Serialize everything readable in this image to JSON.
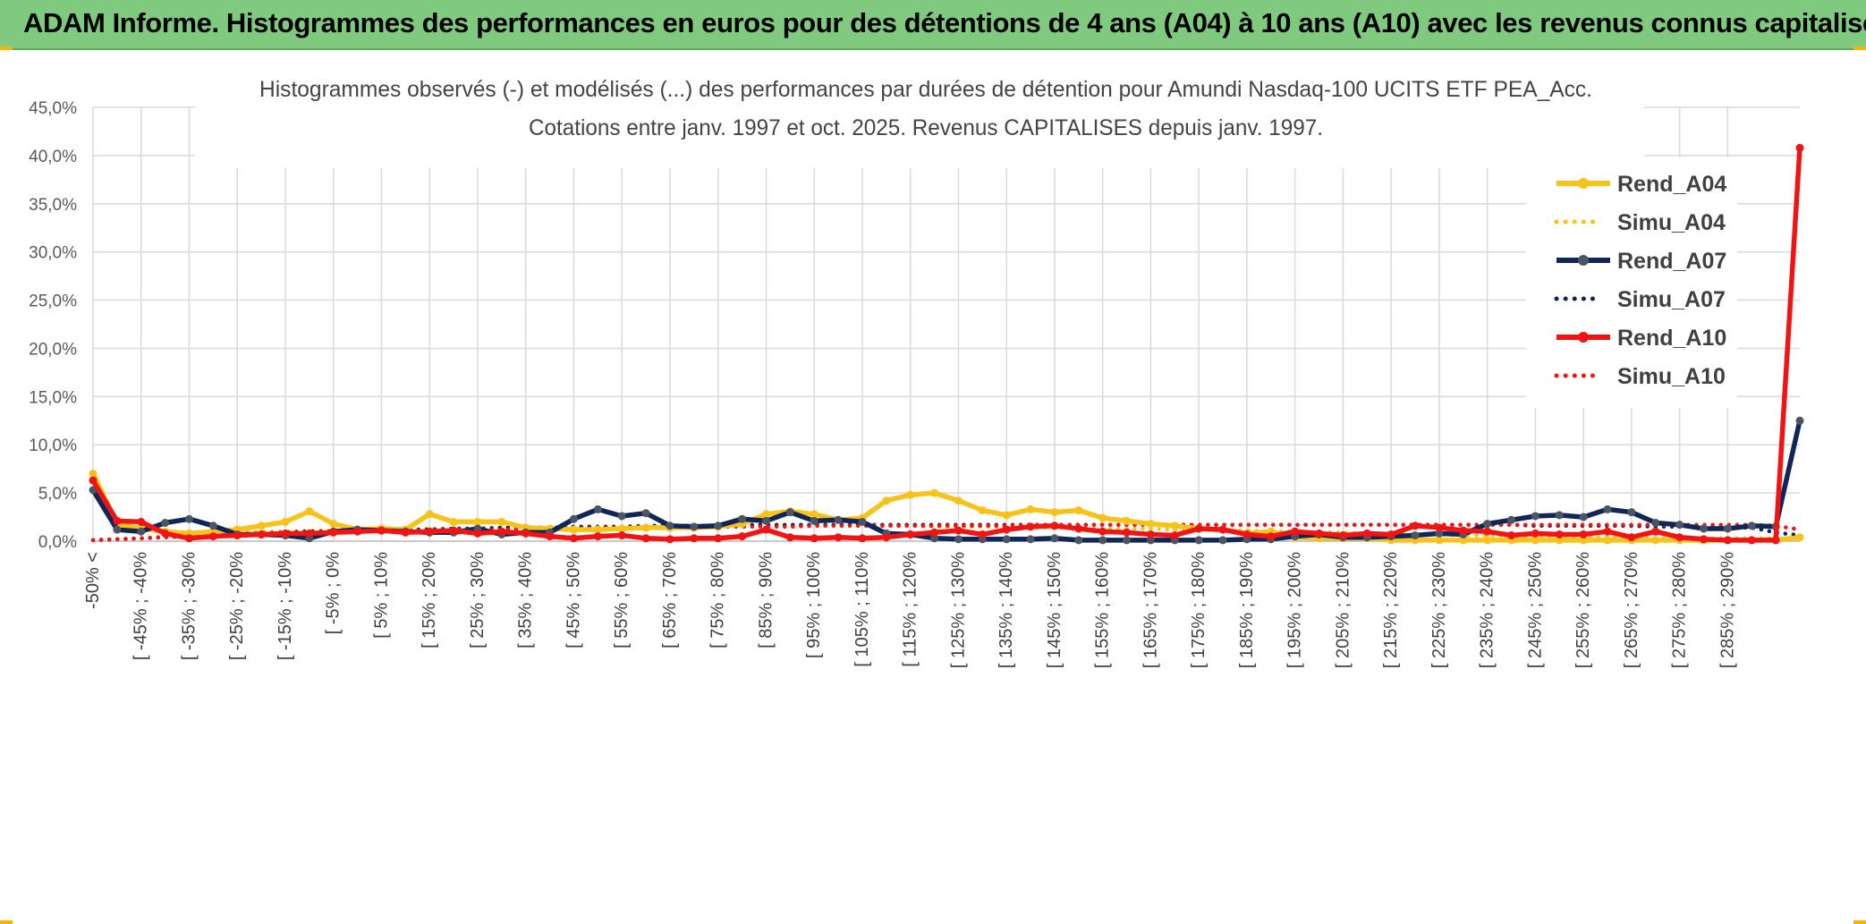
{
  "banner": {
    "title": "ADAM Informe. Histogrammes des performances en euros pour des détentions de 4 ans (A04) à 10 ans (A10) avec les revenus connus capitalisés"
  },
  "colors": {
    "banner_bg": "#7fca7e",
    "A04": "#f7c21a",
    "A07": "#0f2657",
    "A07_marker": "#4b5563",
    "A10": "#f01414"
  },
  "chart_data": {
    "type": "line",
    "title": "Histogrammes observés (-) et modélisés (...) des performances par durées de détention pour Amundi Nasdaq-100 UCITS ETF PEA_Acc.",
    "subtitle": "Cotations entre janv. 1997 et oct. 2025. Revenus CAPITALISES depuis janv. 1997.",
    "xlabel": "",
    "ylabel": "",
    "ylim": [
      0,
      45
    ],
    "yticks": [
      "0,0%",
      "5,0%",
      "10,0%",
      "15,0%",
      "20,0%",
      "25,0%",
      "30,0%",
      "35,0%",
      "40,0%",
      "45,0%"
    ],
    "grid": true,
    "legend_position": "top-right",
    "x_labels": [
      "-50% <",
      "[ -45% ; -40%",
      "[ -35% ; -30%",
      "[ -25% ; -20%",
      "[ -15% ; -10%",
      "[ -5% ; 0%",
      "[ 5% ; 10%",
      "[ 15% ; 20%",
      "[ 25% ; 30%",
      "[ 35% ; 40%",
      "[ 45% ; 50%",
      "[ 55% ; 60%",
      "[ 65% ; 70%",
      "[ 75% ; 80%",
      "[ 85% ; 90%",
      "[ 95% ; 100%",
      "[ 105% ; 110%",
      "[ 115% ; 120%",
      "[ 125% ; 130%",
      "[ 135% ; 140%",
      "[ 145% ; 150%",
      "[ 155% ; 160%",
      "[ 165% ; 170%",
      "[ 175% ; 180%",
      "[ 185% ; 190%",
      "[ 195% ; 200%",
      "[ 205% ; 210%",
      "[ 215% ; 220%",
      "[ 225% ; 230%",
      "[ 235% ; 240%",
      "[ 245% ; 250%",
      "[ 255% ; 260%",
      "[ 265% ; 270%",
      "[ 275% ; 280%",
      "[ 285% ; 290%"
    ],
    "num_points": 72,
    "series": [
      {
        "name": "Rend_A04",
        "style": "solid",
        "color": "#f7c21a",
        "values": [
          7.0,
          1.8,
          1.3,
          1.0,
          0.8,
          1.0,
          1.2,
          1.6,
          2.0,
          3.1,
          1.8,
          1.2,
          1.3,
          1.2,
          2.8,
          2.0,
          2.0,
          2.0,
          1.4,
          1.3,
          1.2,
          1.2,
          1.3,
          1.4,
          1.4,
          1.4,
          1.5,
          1.8,
          2.8,
          3.1,
          2.8,
          2.2,
          2.4,
          4.2,
          4.8,
          5.0,
          4.2,
          3.2,
          2.7,
          3.3,
          3.0,
          3.2,
          2.4,
          2.1,
          1.8,
          1.6,
          1.3,
          1.2,
          0.8,
          1.0,
          0.4,
          0.3,
          0.3,
          0.3,
          0.1,
          0.1,
          0.1,
          0.1,
          0.1,
          0.1,
          0.1,
          0.1,
          0.1,
          0.1,
          0.1,
          0.1,
          0.1,
          0.1,
          0.1,
          0.1,
          0.1,
          0.4
        ]
      },
      {
        "name": "Simu_A04",
        "style": "dotted",
        "color": "#f7c21a",
        "values": [
          0.1,
          0.2,
          0.3,
          0.5,
          0.7,
          0.8,
          0.9,
          1.0,
          1.0,
          1.1,
          1.1,
          1.2,
          1.2,
          1.2,
          1.3,
          1.3,
          1.3,
          1.4,
          1.4,
          1.4,
          1.5,
          1.5,
          1.5,
          1.5,
          1.6,
          1.6,
          1.6,
          1.6,
          1.6,
          1.6,
          1.6,
          1.6,
          1.6,
          1.6,
          1.6,
          1.5,
          1.5,
          1.5,
          1.5,
          1.4,
          1.4,
          1.4,
          1.3,
          1.3,
          1.3,
          1.2,
          1.2,
          1.1,
          1.1,
          1.0,
          1.0,
          0.9,
          0.9,
          0.8,
          0.8,
          0.7,
          0.7,
          0.6,
          0.6,
          0.5,
          0.5,
          0.5,
          0.4,
          0.4,
          0.4,
          0.3,
          0.3,
          0.3,
          0.3,
          0.3,
          0.3,
          0.3
        ]
      },
      {
        "name": "Rend_A07",
        "style": "solid",
        "color": "#0f2657",
        "values": [
          5.3,
          1.2,
          1.0,
          1.9,
          2.3,
          1.6,
          0.7,
          0.7,
          0.6,
          0.3,
          1.0,
          1.2,
          1.1,
          1.0,
          0.9,
          0.9,
          1.3,
          0.7,
          0.9,
          0.9,
          2.3,
          3.3,
          2.6,
          2.9,
          1.6,
          1.5,
          1.6,
          2.3,
          2.1,
          3.0,
          2.1,
          2.2,
          2.0,
          0.8,
          0.7,
          0.3,
          0.2,
          0.2,
          0.2,
          0.2,
          0.3,
          0.1,
          0.1,
          0.1,
          0.1,
          0.1,
          0.1,
          0.1,
          0.2,
          0.2,
          0.5,
          0.7,
          0.4,
          0.4,
          0.5,
          0.6,
          0.8,
          0.7,
          1.8,
          2.2,
          2.6,
          2.7,
          2.5,
          3.3,
          3.0,
          1.9,
          1.7,
          1.3,
          1.3,
          1.6,
          1.5,
          12.5
        ]
      },
      {
        "name": "Simu_A07",
        "style": "dotted",
        "color": "#0f2657",
        "values": [
          0.1,
          0.2,
          0.3,
          0.4,
          0.5,
          0.6,
          0.7,
          0.8,
          0.9,
          1.0,
          1.0,
          1.1,
          1.1,
          1.2,
          1.2,
          1.3,
          1.3,
          1.4,
          1.4,
          1.4,
          1.5,
          1.5,
          1.5,
          1.6,
          1.6,
          1.6,
          1.6,
          1.7,
          1.7,
          1.7,
          1.7,
          1.7,
          1.7,
          1.7,
          1.7,
          1.7,
          1.7,
          1.7,
          1.7,
          1.7,
          1.7,
          1.7,
          1.7,
          1.7,
          1.7,
          1.7,
          1.7,
          1.7,
          1.7,
          1.7,
          1.7,
          1.7,
          1.7,
          1.7,
          1.7,
          1.7,
          1.7,
          1.7,
          1.7,
          1.7,
          1.6,
          1.6,
          1.6,
          1.6,
          1.6,
          1.5,
          1.5,
          1.5,
          1.4,
          1.4,
          0.9,
          0.6
        ]
      },
      {
        "name": "Rend_A10",
        "style": "solid",
        "color": "#f01414",
        "values": [
          6.3,
          2.1,
          2.0,
          0.8,
          0.3,
          0.5,
          0.6,
          0.7,
          0.8,
          0.8,
          0.9,
          1.0,
          1.1,
          0.9,
          1.0,
          1.1,
          0.8,
          1.0,
          0.8,
          0.5,
          0.3,
          0.5,
          0.6,
          0.3,
          0.2,
          0.3,
          0.3,
          0.5,
          1.2,
          0.4,
          0.3,
          0.4,
          0.3,
          0.4,
          0.7,
          0.9,
          1.1,
          0.7,
          1.2,
          1.5,
          1.6,
          1.3,
          1.0,
          0.9,
          0.7,
          0.6,
          1.3,
          1.2,
          0.7,
          0.5,
          1.0,
          0.8,
          0.6,
          0.8,
          0.7,
          1.6,
          1.4,
          1.1,
          1.0,
          0.6,
          0.8,
          0.7,
          0.7,
          1.0,
          0.4,
          1.0,
          0.4,
          0.2,
          0.1,
          0.1,
          0.1,
          40.8
        ]
      },
      {
        "name": "Simu_A10",
        "style": "dotted",
        "color": "#f01414",
        "values": [
          0.1,
          0.2,
          0.3,
          0.4,
          0.5,
          0.6,
          0.7,
          0.7,
          0.8,
          0.9,
          0.9,
          1.0,
          1.0,
          1.1,
          1.1,
          1.2,
          1.2,
          1.2,
          1.3,
          1.3,
          1.3,
          1.4,
          1.4,
          1.4,
          1.4,
          1.5,
          1.5,
          1.5,
          1.5,
          1.5,
          1.6,
          1.6,
          1.6,
          1.6,
          1.6,
          1.6,
          1.6,
          1.6,
          1.6,
          1.7,
          1.7,
          1.7,
          1.7,
          1.7,
          1.7,
          1.7,
          1.7,
          1.7,
          1.7,
          1.7,
          1.7,
          1.7,
          1.7,
          1.7,
          1.7,
          1.7,
          1.7,
          1.7,
          1.7,
          1.7,
          1.7,
          1.7,
          1.7,
          1.7,
          1.7,
          1.7,
          1.7,
          1.7,
          1.7,
          1.7,
          1.6,
          1.2
        ]
      }
    ]
  }
}
